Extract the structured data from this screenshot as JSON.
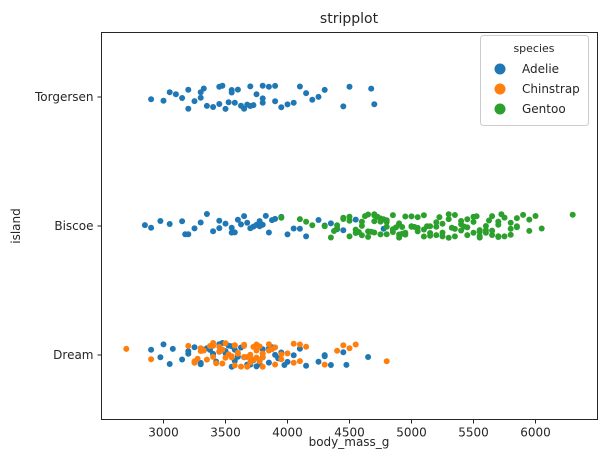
{
  "chart_data": {
    "type": "scatter",
    "title": "stripplot",
    "xlabel": "body_mass_g",
    "ylabel": "island",
    "xlim": [
      2500,
      6500
    ],
    "x_ticks": [
      "3000",
      "3500",
      "4000",
      "4500",
      "5000",
      "5500",
      "6000"
    ],
    "categories": [
      "Torgersen",
      "Biscoe",
      "Dream"
    ],
    "grid": false,
    "legend": {
      "title": "species",
      "position": "top-right"
    },
    "series": [
      {
        "name": "Adelie",
        "color": "#1f77b4",
        "points": [
          {
            "island": "Torgersen",
            "values": [
              2900,
              3050,
              3150,
              3200,
              3250,
              3300,
              3350,
              3400,
              3450,
              3500,
              3550,
              3600,
              3650,
              3700,
              3750,
              3800,
              3850,
              3900,
              3950,
              4000,
              4050,
              4100,
              4200,
              4250,
              4300,
              4450,
              4500,
              4700,
              3325,
              3475,
              3525,
              3575,
              3625,
              3675,
              3725,
              3800,
              3900,
              4150,
              4675,
              3000,
              3100,
              3300,
              3450,
              3550,
              3700,
              3800,
              3200
            ]
          },
          {
            "island": "Biscoe",
            "values": [
              2850,
              2900,
              3050,
              3150,
              3200,
              3250,
              3300,
              3400,
              3450,
              3500,
              3550,
              3600,
              3650,
              3700,
              3725,
              3750,
              3775,
              3800,
              3825,
              3850,
              3900,
              3950,
              4000,
              4050,
              4100,
              4150,
              4250,
              4300,
              4350,
              4400,
              4450,
              4550,
              4750,
              4775,
              3350,
              3450,
              3550,
              3575,
              3625,
              3675,
              3775,
              3875,
              2975,
              3175
            ]
          },
          {
            "island": "Dream",
            "values": [
              2900,
              2975,
              3000,
              3050,
              3150,
              3200,
              3250,
              3300,
              3325,
              3350,
              3400,
              3425,
              3450,
              3475,
              3500,
              3525,
              3550,
              3575,
              3600,
              3650,
              3700,
              3725,
              3750,
              3800,
              3850,
              3900,
              3950,
              4000,
              4050,
              4150,
              4250,
              4300,
              4350,
              4450,
              4650,
              3300,
              3400,
              3500,
              3575,
              3675,
              3775,
              3875,
              3075,
              3200,
              3450,
              3550,
              3700,
              3850,
              4100,
              4300,
              3375,
              3625,
              3800,
              3925,
              3975,
              4475
            ]
          }
        ]
      },
      {
        "name": "Chinstrap",
        "color": "#ff7f0e",
        "points": [
          {
            "island": "Dream",
            "values": [
              2700,
              2900,
              3200,
              3250,
              3300,
              3325,
              3350,
              3400,
              3425,
              3450,
              3475,
              3500,
              3525,
              3550,
              3575,
              3600,
              3625,
              3650,
              3675,
              3700,
              3725,
              3750,
              3775,
              3800,
              3850,
              3900,
              3950,
              4000,
              4050,
              4100,
              4150,
              4300,
              4400,
              4450,
              4500,
              4550,
              4800,
              3250,
              3400,
              3500,
              3600,
              3700,
              3800,
              3900,
              3300,
              3450,
              3550,
              3650,
              3750,
              3275,
              3375,
              3475,
              3575,
              3675,
              3775,
              3875,
              3575,
              3725,
              3800,
              3950,
              4050,
              4100,
              3400,
              3650,
              3700,
              3750,
              3800,
              3850
            ]
          }
        ]
      },
      {
        "name": "Gentoo",
        "color": "#2ca02c",
        "points": [
          {
            "island": "Biscoe",
            "values": [
              3950,
              4100,
              4150,
              4200,
              4300,
              4350,
              4375,
              4400,
              4450,
              4500,
              4550,
              4575,
              4600,
              4625,
              4650,
              4675,
              4700,
              4725,
              4750,
              4775,
              4800,
              4850,
              4875,
              4900,
              4925,
              4950,
              5000,
              5050,
              5100,
              5150,
              5200,
              5250,
              5300,
              5350,
              5400,
              5450,
              5500,
              5550,
              5600,
              5650,
              5700,
              5750,
              5800,
              5850,
              5900,
              5950,
              6000,
              6050,
              6300,
              4650,
              4700,
              4750,
              4800,
              4850,
              4900,
              4950,
              5000,
              5100,
              5200,
              5300,
              5400,
              5500,
              5600,
              5700,
              5800,
              4925,
              5025,
              5125,
              5225,
              5325,
              5425,
              5525,
              5625,
              5725,
              5850,
              4600,
              4700,
              4800,
              4900,
              5000,
              5050,
              5150,
              5250,
              5350,
              5450,
              5550,
              5650,
              5750,
              4400,
              4500,
              4550,
              4650,
              4750,
              4850,
              4950,
              5050,
              5150,
              5250,
              5350,
              5450,
              5550,
              5650,
              5700,
              5800,
              5950,
              5400,
              5300,
              5200,
              5100,
              5000,
              4900,
              4800,
              4700,
              4600,
              4500,
              4450,
              5500,
              5600,
              5700,
              5850,
              5550
            ]
          }
        ]
      }
    ]
  }
}
